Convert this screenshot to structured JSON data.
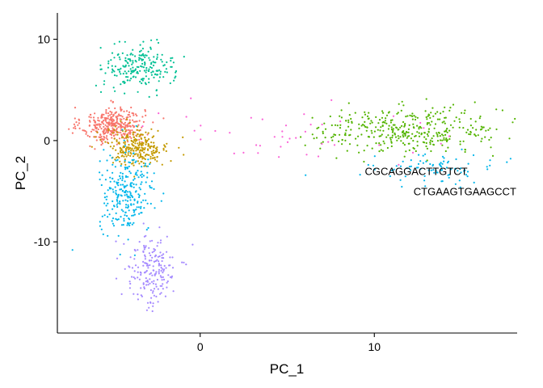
{
  "chart_data": {
    "type": "scatter",
    "title": "",
    "xlabel": "PC_1",
    "ylabel": "PC_2",
    "xlim": [
      -8.2,
      18.2
    ],
    "ylim": [
      -19.0,
      12.6
    ],
    "x_ticks": [
      0,
      10
    ],
    "x_tick_labels": [
      "0",
      "10"
    ],
    "y_ticks": [
      -10,
      0,
      10
    ],
    "y_tick_labels": [
      "-10",
      "0",
      "10"
    ],
    "grid": false,
    "legend": "none",
    "point_size": 1.1,
    "clusters": [
      {
        "color": "#F8766D",
        "count": 360,
        "center": [
          -5.0,
          1.5
        ],
        "spread": [
          0.9,
          0.9
        ]
      },
      {
        "color": "#C49A00",
        "count": 260,
        "center": [
          -3.6,
          -0.6
        ],
        "spread": [
          0.9,
          0.9
        ]
      },
      {
        "color": "#53B400",
        "count": 380,
        "center": [
          12.0,
          1.0
        ],
        "spread": [
          2.7,
          1.1
        ]
      },
      {
        "color": "#00C094",
        "count": 210,
        "center": [
          -3.5,
          7.3
        ],
        "spread": [
          1.0,
          1.1
        ]
      },
      {
        "color": "#00B6EB",
        "count": 260,
        "center": [
          -4.2,
          -5.2
        ],
        "spread": [
          0.8,
          2.0
        ]
      },
      {
        "color": "#00B6EB",
        "count": 90,
        "center": [
          13.5,
          -2.8
        ],
        "spread": [
          1.8,
          0.7
        ]
      },
      {
        "color": "#A58AFF",
        "count": 190,
        "center": [
          -2.8,
          -12.8
        ],
        "spread": [
          0.75,
          1.8
        ]
      },
      {
        "color": "#FB61D7",
        "count": 45,
        "center": [
          5.0,
          0.5
        ],
        "spread": [
          4.5,
          2.0
        ]
      }
    ],
    "annotations": [
      {
        "text": "CGCAGGACTTGTCT",
        "x": 12.4,
        "y": -3.4
      },
      {
        "text": "CTGAAGTGAAGCCT",
        "x": 15.2,
        "y": -5.4
      }
    ]
  },
  "colors": {
    "axis": "#000000",
    "background": "#ffffff"
  }
}
